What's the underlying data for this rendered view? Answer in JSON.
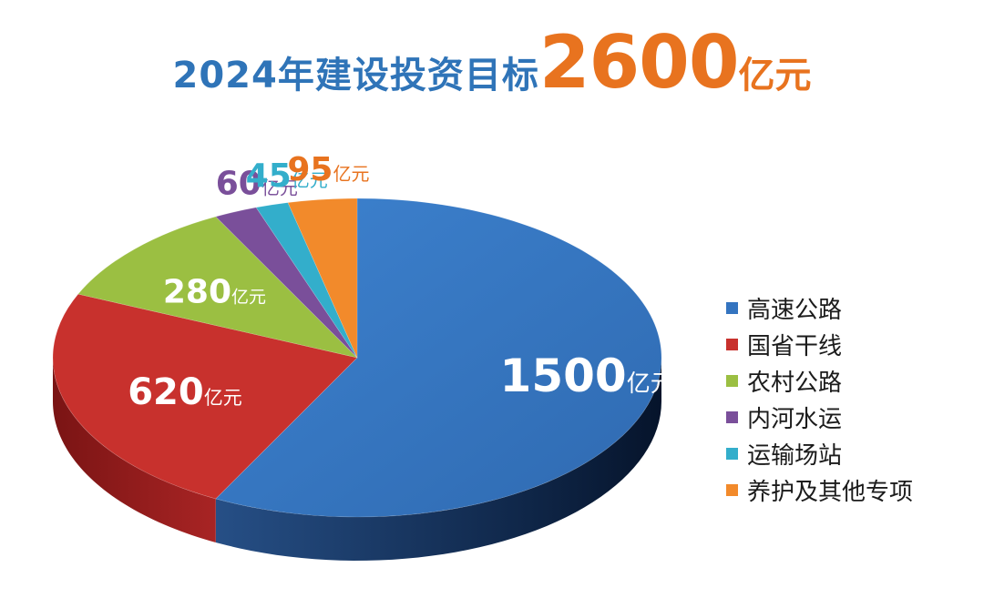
{
  "title": {
    "prefix": "2024年建设投资目标",
    "amount": "2600",
    "unit": "亿元"
  },
  "chart_data": {
    "type": "pie",
    "style": "3d",
    "unit": "亿元",
    "legend_position": "right",
    "slices": [
      {
        "name": "高速公路",
        "value": 1500,
        "label": "1500",
        "color": "#3474c0",
        "label_color": "#ffffff"
      },
      {
        "name": "国省干线",
        "value": 620,
        "label": "620",
        "color": "#c8312d",
        "label_color": "#ffffff"
      },
      {
        "name": "农村公路",
        "value": 280,
        "label": "280",
        "color": "#9bbf42",
        "label_color": "#ffffff"
      },
      {
        "name": "内河水运",
        "value": 60,
        "label": "60",
        "color": "#7a4f9a",
        "label_color": "#7a4f9a"
      },
      {
        "name": "运输场站",
        "value": 45,
        "label": "45",
        "color": "#33aecb",
        "label_color": "#33aecb"
      },
      {
        "name": "养护及其他专项",
        "value": 95,
        "label": "95",
        "color": "#f28a2b",
        "label_color": "#e8731f"
      }
    ]
  }
}
